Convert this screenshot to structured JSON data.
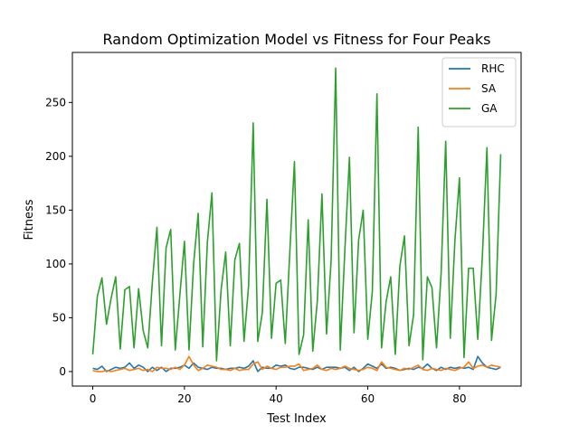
{
  "chart_data": {
    "type": "line",
    "title": "Random Optimization Model vs Fitness for Four Peaks",
    "xlabel": "Test Index",
    "ylabel": "Fitness",
    "xlim": [
      -4.45,
      93.45
    ],
    "ylim": [
      -13.5,
      296.5
    ],
    "xticks": [
      0,
      20,
      40,
      60,
      80
    ],
    "yticks": [
      0,
      50,
      100,
      150,
      200,
      250
    ],
    "grid": false,
    "legend_position": "top-right",
    "x": [
      0,
      1,
      2,
      3,
      4,
      5,
      6,
      7,
      8,
      9,
      10,
      11,
      12,
      13,
      14,
      15,
      16,
      17,
      18,
      19,
      20,
      21,
      22,
      23,
      24,
      25,
      26,
      27,
      28,
      29,
      30,
      31,
      32,
      33,
      34,
      35,
      36,
      37,
      38,
      39,
      40,
      41,
      42,
      43,
      44,
      45,
      46,
      47,
      48,
      49,
      50,
      51,
      52,
      53,
      54,
      55,
      56,
      57,
      58,
      59,
      60,
      61,
      62,
      63,
      64,
      65,
      66,
      67,
      68,
      69,
      70,
      71,
      72,
      73,
      74,
      75,
      76,
      77,
      78,
      79,
      80,
      81,
      82,
      83,
      84,
      85,
      86,
      87,
      88,
      89
    ],
    "series": [
      {
        "name": "RHC",
        "color": "#1f77b4",
        "values": [
          3,
          2,
          5,
          0,
          2,
          4,
          3,
          4,
          8,
          3,
          6,
          4,
          0,
          4,
          1,
          4,
          0,
          3,
          3,
          4,
          6,
          3,
          8,
          4,
          3,
          2,
          4,
          3,
          3,
          2,
          3,
          3,
          4,
          3,
          5,
          10,
          0,
          4,
          3,
          3,
          6,
          5,
          6,
          3,
          2,
          4,
          4,
          3,
          2,
          4,
          2,
          4,
          4,
          4,
          3,
          4,
          1,
          4,
          0,
          3,
          7,
          5,
          3,
          7,
          3,
          4,
          3,
          1,
          2,
          3,
          2,
          4,
          3,
          7,
          3,
          1,
          4,
          2,
          4,
          3,
          4,
          3,
          4,
          2,
          14,
          8,
          4,
          3,
          2,
          4
        ]
      },
      {
        "name": "SA",
        "color": "#ff7f0e",
        "values": [
          1,
          0,
          0,
          1,
          0,
          1,
          2,
          3,
          1,
          2,
          3,
          1,
          2,
          0,
          4,
          3,
          3,
          2,
          4,
          2,
          6,
          14,
          6,
          1,
          3,
          6,
          5,
          4,
          2,
          2,
          1,
          3,
          1,
          2,
          2,
          7,
          9,
          2,
          5,
          3,
          2,
          4,
          4,
          5,
          5,
          7,
          1,
          2,
          3,
          6,
          2,
          1,
          3,
          2,
          3,
          5,
          3,
          2,
          1,
          2,
          4,
          3,
          1,
          9,
          4,
          3,
          2,
          1,
          3,
          2,
          4,
          6,
          2,
          1,
          3,
          2,
          1,
          3,
          2,
          1,
          3,
          4,
          9,
          3,
          5,
          6,
          4,
          6,
          5,
          4
        ]
      },
      {
        "name": "GA",
        "color": "#2ca02c",
        "values": [
          16,
          70,
          87,
          44,
          68,
          88,
          21,
          76,
          79,
          22,
          77,
          38,
          22,
          83,
          134,
          24,
          115,
          132,
          20,
          71,
          121,
          20,
          100,
          147,
          23,
          120,
          166,
          10,
          76,
          111,
          24,
          104,
          119,
          28,
          80,
          231,
          28,
          55,
          160,
          31,
          82,
          85,
          26,
          112,
          195,
          16,
          34,
          141,
          19,
          66,
          165,
          35,
          103,
          282,
          20,
          113,
          199,
          36,
          122,
          150,
          30,
          75,
          258,
          22,
          65,
          88,
          16,
          98,
          126,
          24,
          53,
          227,
          11,
          88,
          78,
          22,
          91,
          214,
          31,
          121,
          180,
          13,
          96,
          96,
          30,
          107,
          208,
          29,
          72,
          202
        ]
      }
    ]
  }
}
